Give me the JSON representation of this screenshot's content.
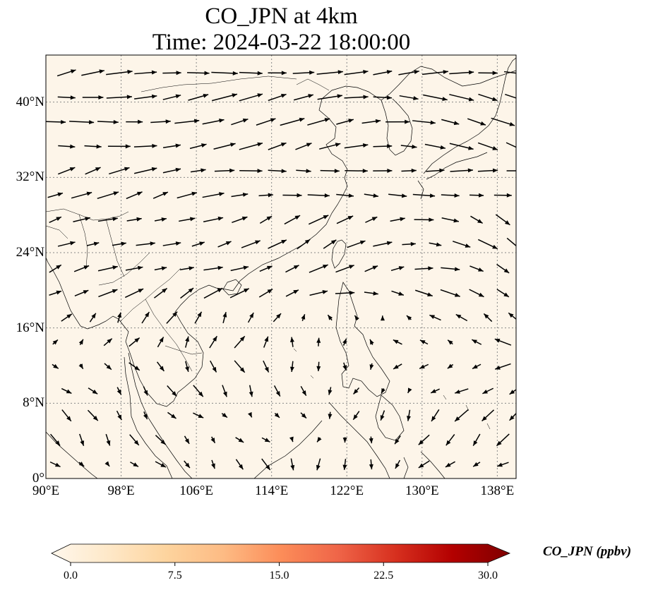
{
  "title_line1": "CO_JPN at 4km",
  "title_line2": "Time: 2024-03-22 18:00:00",
  "map": {
    "lon_range": [
      90,
      140
    ],
    "lat_range": [
      0,
      45
    ],
    "x_ticks": [
      {
        "lon": 90,
        "label": "90°E"
      },
      {
        "lon": 98,
        "label": "98°E"
      },
      {
        "lon": 106,
        "label": "106°E"
      },
      {
        "lon": 114,
        "label": "114°E"
      },
      {
        "lon": 122,
        "label": "122°E"
      },
      {
        "lon": 130,
        "label": "130°E"
      },
      {
        "lon": 138,
        "label": "138°E"
      }
    ],
    "y_ticks": [
      {
        "lat": 0,
        "label": "0°"
      },
      {
        "lat": 8,
        "label": "8°N"
      },
      {
        "lat": 16,
        "label": "16°N"
      },
      {
        "lat": 24,
        "label": "24°N"
      },
      {
        "lat": 32,
        "label": "32°N"
      },
      {
        "lat": 40,
        "label": "40°N"
      }
    ],
    "field_color": "#fdf5e9",
    "gridline_color": "#888888",
    "coastline_color": "#000000",
    "vector_color": "#000000"
  },
  "colorbar": {
    "label": "CO_JPN (ppbv)",
    "min": 0,
    "max": 30,
    "extend": "both",
    "colormap": "OrRd",
    "ticks": [
      {
        "value": 0,
        "label": "0.0"
      },
      {
        "value": 7.5,
        "label": "7.5"
      },
      {
        "value": 15,
        "label": "15.0"
      },
      {
        "value": 22.5,
        "label": "22.5"
      },
      {
        "value": 30,
        "label": "30.0"
      }
    ],
    "stops": [
      "#fff7ec",
      "#fee8c8",
      "#fdd49e",
      "#fdbb84",
      "#fc8d59",
      "#ef6548",
      "#d7301f",
      "#b30000",
      "#7f0000"
    ]
  }
}
